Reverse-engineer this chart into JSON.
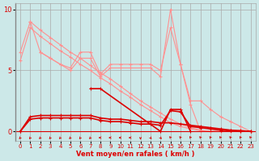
{
  "background_color": "#cce8e8",
  "grid_color": "#aaaaaa",
  "xlabel": "Vent moyen/en rafales ( km/h )",
  "xlim": [
    -0.5,
    23.5
  ],
  "ylim": [
    -0.8,
    10.5
  ],
  "yticks": [
    0,
    5,
    10
  ],
  "xticks": [
    0,
    1,
    2,
    3,
    4,
    5,
    6,
    7,
    8,
    9,
    10,
    11,
    12,
    13,
    14,
    15,
    16,
    17,
    18,
    19,
    20,
    21,
    22,
    23
  ],
  "line_color_light": "#ff9090",
  "line_color_dark": "#dd0000",
  "s1_x": [
    0,
    1,
    2,
    3,
    4,
    5,
    6,
    7,
    8,
    9,
    10,
    11,
    12,
    13,
    14,
    15,
    16,
    17,
    18,
    19,
    20,
    21,
    22,
    23
  ],
  "s1_y": [
    6.5,
    9.0,
    8.3,
    7.7,
    7.1,
    6.5,
    6.0,
    5.4,
    4.8,
    4.3,
    3.7,
    3.1,
    2.5,
    2.0,
    1.5,
    1.0,
    0.6,
    0.3,
    0.1,
    0.0,
    0.0,
    0.0,
    0.0,
    0.0
  ],
  "s2_x": [
    0,
    1,
    2,
    3,
    4,
    5,
    6,
    7,
    8,
    9,
    10,
    11,
    12,
    13,
    14,
    15,
    16,
    17,
    18,
    19,
    20,
    21,
    22,
    23
  ],
  "s2_y": [
    5.8,
    8.5,
    7.8,
    7.2,
    6.6,
    6.1,
    5.5,
    5.0,
    4.4,
    3.9,
    3.3,
    2.8,
    2.2,
    1.7,
    1.2,
    0.7,
    0.4,
    0.2,
    0.05,
    0.0,
    0.0,
    0.0,
    0.0,
    0.0
  ],
  "s3_x": [
    1,
    2,
    3,
    4,
    5,
    6,
    7,
    8,
    9,
    10,
    11,
    12,
    13,
    14,
    15,
    16,
    17,
    18,
    19,
    20,
    21,
    22,
    23
  ],
  "s3_y": [
    9.0,
    6.5,
    6.0,
    5.5,
    5.2,
    6.5,
    6.5,
    4.7,
    5.5,
    5.5,
    5.5,
    5.5,
    5.5,
    5.0,
    8.5,
    5.5,
    2.5,
    2.5,
    1.8,
    1.2,
    0.8,
    0.4,
    0.0
  ],
  "s4_x": [
    2,
    3,
    4,
    5,
    6,
    7,
    8,
    9,
    10,
    11,
    12,
    13,
    14,
    15,
    16,
    17,
    18,
    19,
    20,
    21,
    22,
    23
  ],
  "s4_y": [
    6.5,
    6.0,
    5.5,
    5.0,
    6.0,
    6.0,
    4.5,
    5.2,
    5.2,
    5.2,
    5.2,
    5.2,
    4.5,
    10.0,
    5.5,
    2.2,
    0.0,
    0.0,
    0.0,
    0.0,
    0.1,
    0.0
  ],
  "s5_x": [
    0,
    1,
    2,
    3,
    4,
    5,
    6,
    7,
    8,
    9,
    10,
    11,
    12,
    13,
    14,
    15,
    16,
    17,
    18,
    19,
    20,
    21,
    22,
    23
  ],
  "s5_y": [
    0.0,
    1.2,
    1.3,
    1.3,
    1.3,
    1.3,
    1.3,
    1.3,
    1.1,
    1.0,
    1.0,
    0.9,
    0.8,
    0.8,
    0.7,
    0.7,
    0.6,
    0.5,
    0.4,
    0.3,
    0.2,
    0.1,
    0.05,
    0.0
  ],
  "s6_x": [
    0,
    1,
    2,
    3,
    4,
    5,
    6,
    7,
    8,
    9,
    10,
    11,
    12,
    13,
    14,
    15,
    16,
    17,
    18,
    19,
    20,
    21,
    22,
    23
  ],
  "s6_y": [
    0.0,
    1.0,
    1.1,
    1.1,
    1.1,
    1.1,
    1.1,
    1.1,
    0.9,
    0.8,
    0.8,
    0.7,
    0.6,
    0.6,
    0.5,
    1.7,
    1.6,
    0.4,
    0.3,
    0.2,
    0.1,
    0.05,
    0.0,
    0.0
  ],
  "s7_x": [
    7,
    8,
    14,
    15,
    16,
    17
  ],
  "s7_y": [
    3.5,
    3.5,
    0.0,
    1.8,
    1.8,
    0.0
  ],
  "arrows_x": [
    0,
    1,
    2,
    3,
    4,
    5,
    6,
    7,
    8,
    9,
    10,
    11,
    12,
    13,
    14,
    15,
    16,
    17,
    18,
    19,
    20,
    21,
    22,
    23
  ],
  "arrow_angles_deg": [
    225,
    225,
    225,
    225,
    225,
    225,
    225,
    225,
    270,
    270,
    270,
    270,
    180,
    135,
    135,
    315,
    315,
    315,
    315,
    315,
    315,
    315,
    315,
    315
  ]
}
